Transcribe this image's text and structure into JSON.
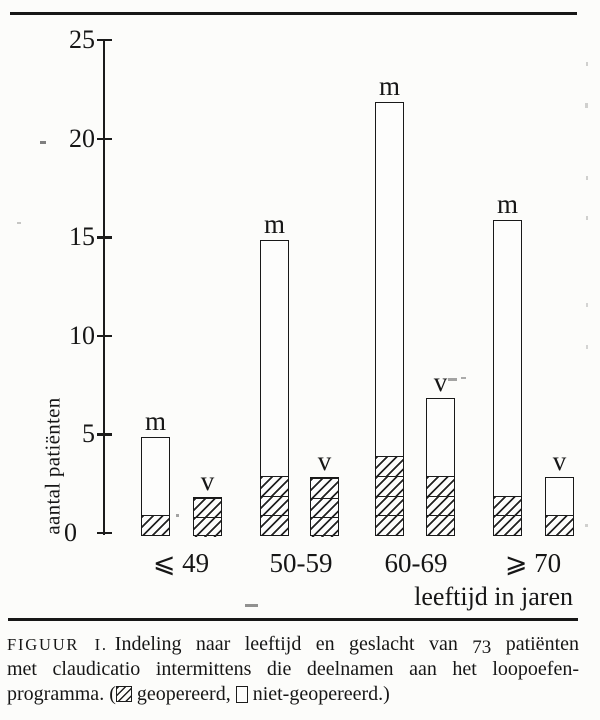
{
  "page": {
    "background": "#fcfcfa",
    "ink_color": "#1a1a1a",
    "kind": "scanned journal figure"
  },
  "chart_data": {
    "type": "bar",
    "subtype": "stacked, grouped by sex within age class",
    "title": "",
    "ylabel": "aantal patiënten",
    "xlabel": "leeftijd in jaren",
    "ylim": [
      0,
      25
    ],
    "yticks": [
      0,
      5,
      10,
      15,
      20,
      25
    ],
    "grid": false,
    "categories": [
      "⩽ 49",
      "50-59",
      "60-69",
      "⩾ 70"
    ],
    "series": [
      {
        "name": "m",
        "label": "m",
        "totals": [
          5,
          15,
          22,
          16
        ],
        "operated": [
          1,
          3,
          4,
          2
        ],
        "not_operated": [
          4,
          12,
          18,
          14
        ]
      },
      {
        "name": "v",
        "label": "v",
        "totals": [
          2,
          3,
          7,
          3
        ],
        "operated": [
          2,
          3,
          3,
          1
        ],
        "not_operated": [
          0,
          0,
          4,
          2
        ]
      }
    ],
    "total_patients": 73,
    "legend": [
      {
        "swatch": "hatched",
        "label": "geopereerd"
      },
      {
        "swatch": "open",
        "label": "niet-geopereerd"
      }
    ],
    "legend_position": "in-caption"
  },
  "caption": {
    "figure_label": "FIGUUR I.",
    "line1_a": "Indeling naar leeftijd en geslacht van ",
    "line1_num": "73",
    "line1_b": " patiënten",
    "line2": "met claudicatio intermittens die deelnamen aan het loopoefen-",
    "line3_a": "programma. (",
    "line3_b": " geopereerd, ",
    "line3_c": " niet-geopereerd.)"
  }
}
